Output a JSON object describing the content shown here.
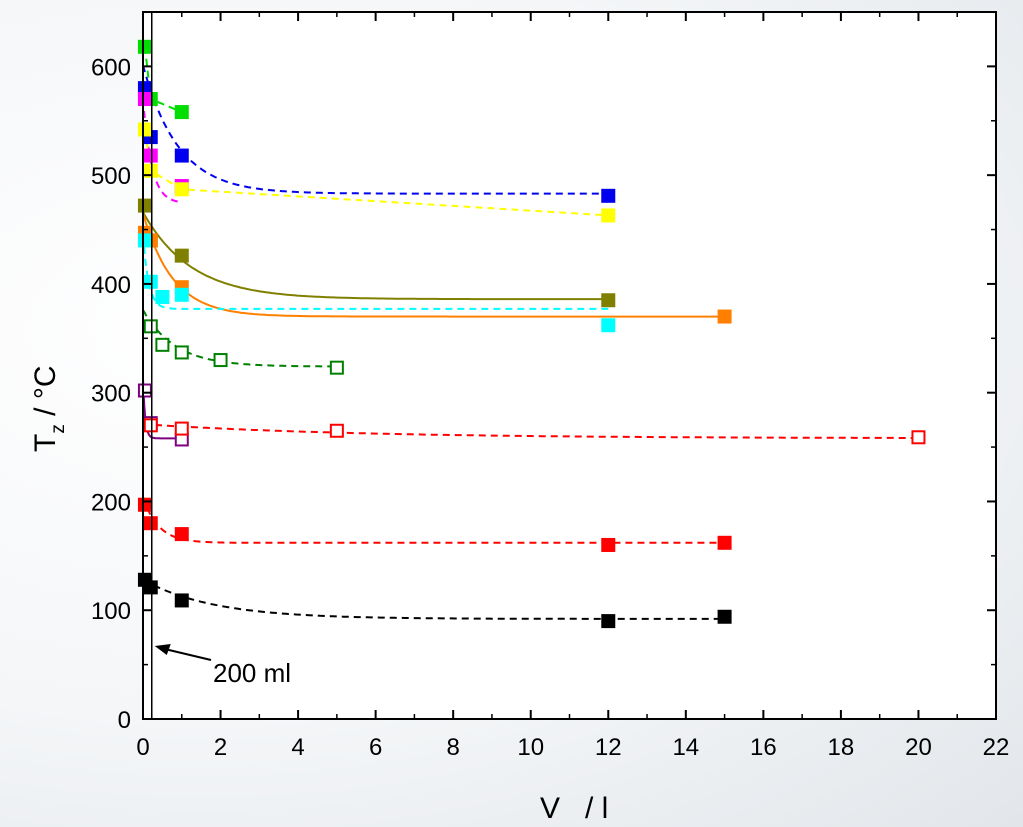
{
  "chart_data": {
    "type": "scatter",
    "title": "",
    "xlabel": "V   / l",
    "ylabel": "T",
    "ylabel_sub": "z",
    "ylabel_unit": " / °C",
    "xlim": [
      0,
      22
    ],
    "ylim": [
      0,
      650
    ],
    "xticks": [
      0,
      2,
      4,
      6,
      8,
      10,
      12,
      14,
      16,
      18,
      20,
      22
    ],
    "yticks": [
      0,
      100,
      200,
      300,
      400,
      500,
      600
    ],
    "grid": false,
    "legend": "none",
    "annotation": {
      "text": "200 ml",
      "x": 0.2
    },
    "series": [
      {
        "color": "#00dd00",
        "marker": "filled",
        "line": "dashed",
        "points": [
          [
            0.05,
            618
          ],
          [
            0.2,
            570
          ],
          [
            1,
            558
          ]
        ],
        "fit": null
      },
      {
        "color": "#0000ee",
        "marker": "filled",
        "line": "dashed",
        "points": [
          [
            0.05,
            580
          ],
          [
            0.2,
            535
          ],
          [
            1,
            518
          ],
          [
            12,
            481
          ]
        ],
        "fit": {
          "a": 483,
          "b": 118,
          "k": 1.1
        }
      },
      {
        "color": "#ff00ff",
        "marker": "filled",
        "line": "dashed",
        "points": [
          [
            0.05,
            570
          ],
          [
            0.2,
            518
          ],
          [
            1,
            490
          ]
        ],
        "fit": {
          "a": 474,
          "b": 96,
          "k": 4.5
        }
      },
      {
        "color": "#ffff00",
        "marker": "filled",
        "line": "dashed",
        "points": [
          [
            0.05,
            542
          ],
          [
            0.2,
            504
          ],
          [
            1,
            487
          ],
          [
            12,
            463
          ]
        ],
        "fit": null
      },
      {
        "color": "#808000",
        "marker": "filled",
        "line": "solid",
        "points": [
          [
            0.05,
            472
          ],
          [
            0.2,
            440
          ],
          [
            1,
            426
          ],
          [
            12,
            385
          ]
        ],
        "fit": {
          "a": 386,
          "b": 80,
          "k": 0.8
        }
      },
      {
        "color": "#ff8000",
        "marker": "filled",
        "line": "solid",
        "points": [
          [
            0.05,
            447
          ],
          [
            0.2,
            440
          ],
          [
            1,
            397
          ],
          [
            15,
            370
          ]
        ],
        "fit": {
          "a": 370,
          "b": 95,
          "k": 1.3
        }
      },
      {
        "color": "#00ffff",
        "marker": "filled",
        "line": "dashed",
        "points": [
          [
            0.05,
            440
          ],
          [
            0.2,
            402
          ],
          [
            0.5,
            388
          ],
          [
            1,
            390
          ],
          [
            12,
            362
          ]
        ],
        "fit": {
          "a": 377,
          "b": 68,
          "k": 7
        }
      },
      {
        "color": "#008000",
        "marker": "open",
        "line": "dashed",
        "points": [
          [
            0.2,
            361
          ],
          [
            0.5,
            344
          ],
          [
            1,
            337
          ],
          [
            2,
            330
          ],
          [
            5,
            323
          ]
        ],
        "fit": {
          "a": 324,
          "b": 52,
          "k": 1.2
        }
      },
      {
        "color": "#800080",
        "marker": "open",
        "line": "solid",
        "points": [
          [
            0.05,
            302
          ],
          [
            0.2,
            272
          ],
          [
            1,
            257
          ]
        ],
        "fit": {
          "a": 258,
          "b": 55,
          "k": 18
        }
      },
      {
        "color": "#ff0000",
        "marker": "open",
        "line": "dashed",
        "points": [
          [
            0.2,
            270
          ],
          [
            1,
            267
          ],
          [
            5,
            265
          ],
          [
            20,
            259
          ]
        ],
        "fit": {
          "a": 258,
          "b": 13,
          "k": 0.18
        }
      },
      {
        "color": "#ff0000",
        "marker": "filled",
        "line": "dashed",
        "points": [
          [
            0.05,
            197
          ],
          [
            0.2,
            180
          ],
          [
            1,
            170
          ],
          [
            12,
            160
          ],
          [
            15,
            162
          ]
        ],
        "fit": {
          "a": 162,
          "b": 42,
          "k": 2.5
        }
      },
      {
        "color": "#000000",
        "marker": "filled",
        "line": "dashed",
        "points": [
          [
            0.05,
            128
          ],
          [
            0.2,
            121
          ],
          [
            1,
            109
          ],
          [
            12,
            90
          ],
          [
            15,
            94
          ]
        ],
        "fit": {
          "a": 92,
          "b": 36,
          "k": 0.55
        }
      }
    ]
  }
}
